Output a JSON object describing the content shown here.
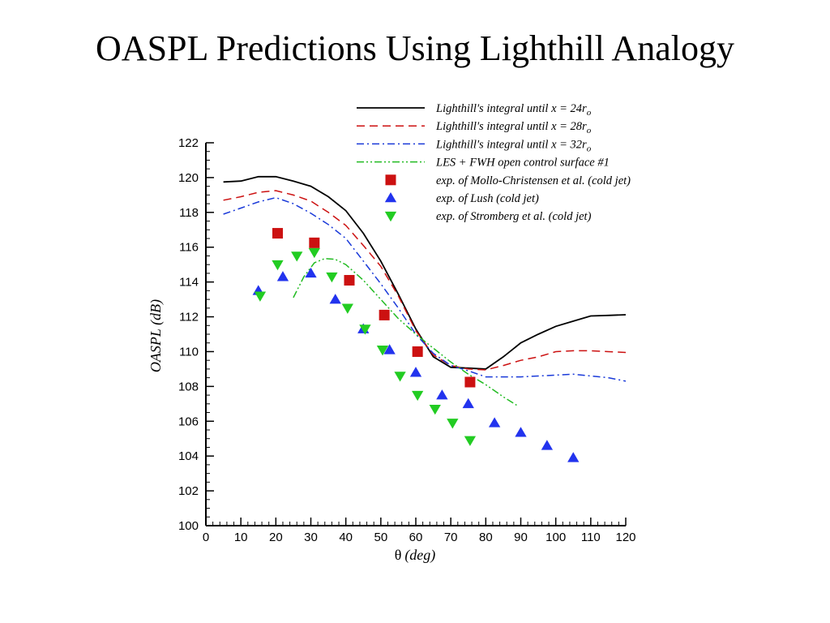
{
  "page": {
    "title": "OASPL Predictions Using Lighthill Analogy"
  },
  "chart_data": {
    "type": "line",
    "title": "",
    "xlabel": "(deg)",
    "xlabel_symbol": "θ",
    "ylabel": "OASPL (dB)",
    "xlim": [
      0,
      120
    ],
    "ylim": [
      100,
      122
    ],
    "xticks": [
      0,
      10,
      20,
      30,
      40,
      50,
      60,
      70,
      80,
      90,
      100,
      110,
      120
    ],
    "yticks": [
      100,
      102,
      104,
      106,
      108,
      110,
      112,
      114,
      116,
      118,
      120,
      122
    ],
    "grid": false,
    "legend_position": "top-right",
    "series": [
      {
        "name": "Lighthill's integral until x = 24r",
        "name_subscript": "o",
        "kind": "line",
        "style": "solid",
        "color": "#000000",
        "points": [
          [
            5,
            119.75
          ],
          [
            10,
            119.8
          ],
          [
            15,
            120.05
          ],
          [
            20,
            120.05
          ],
          [
            25,
            119.8
          ],
          [
            30,
            119.5
          ],
          [
            35,
            118.9
          ],
          [
            40,
            118.1
          ],
          [
            45,
            116.8
          ],
          [
            50,
            115.2
          ],
          [
            55,
            113.3
          ],
          [
            60,
            111.3
          ],
          [
            65,
            109.7
          ],
          [
            70,
            109.1
          ],
          [
            75,
            109.05
          ],
          [
            80,
            109.0
          ],
          [
            85,
            109.7
          ],
          [
            90,
            110.5
          ],
          [
            95,
            111.0
          ],
          [
            100,
            111.45
          ],
          [
            105,
            111.75
          ],
          [
            110,
            112.05
          ],
          [
            115,
            112.08
          ],
          [
            120,
            112.12
          ]
        ]
      },
      {
        "name": "Lighthill's integral until x = 28r",
        "name_subscript": "o",
        "kind": "line",
        "style": "dashed",
        "color": "#cc1111",
        "points": [
          [
            5,
            118.7
          ],
          [
            10,
            118.9
          ],
          [
            15,
            119.15
          ],
          [
            20,
            119.25
          ],
          [
            25,
            119.0
          ],
          [
            30,
            118.65
          ],
          [
            35,
            118.0
          ],
          [
            40,
            117.25
          ],
          [
            45,
            116.1
          ],
          [
            50,
            114.9
          ],
          [
            55,
            113.2
          ],
          [
            60,
            111.2
          ],
          [
            65,
            109.8
          ],
          [
            70,
            109.2
          ],
          [
            75,
            109.0
          ],
          [
            80,
            108.95
          ],
          [
            85,
            109.2
          ],
          [
            90,
            109.5
          ],
          [
            95,
            109.7
          ],
          [
            100,
            110.0
          ],
          [
            105,
            110.05
          ],
          [
            110,
            110.05
          ],
          [
            115,
            110.0
          ],
          [
            120,
            109.95
          ]
        ]
      },
      {
        "name": "Lighthill's integral until x = 32r",
        "name_subscript": "o",
        "kind": "line",
        "style": "dashdot",
        "color": "#1a3ad9",
        "points": [
          [
            5,
            117.9
          ],
          [
            10,
            118.25
          ],
          [
            15,
            118.6
          ],
          [
            20,
            118.85
          ],
          [
            25,
            118.5
          ],
          [
            30,
            117.95
          ],
          [
            35,
            117.3
          ],
          [
            40,
            116.5
          ],
          [
            45,
            115.2
          ],
          [
            50,
            113.9
          ],
          [
            55,
            112.5
          ],
          [
            60,
            111.0
          ],
          [
            65,
            109.9
          ],
          [
            70,
            109.2
          ],
          [
            75,
            108.9
          ],
          [
            80,
            108.55
          ],
          [
            85,
            108.55
          ],
          [
            90,
            108.55
          ],
          [
            95,
            108.6
          ],
          [
            100,
            108.65
          ],
          [
            105,
            108.7
          ],
          [
            110,
            108.6
          ],
          [
            115,
            108.5
          ],
          [
            120,
            108.3
          ]
        ]
      },
      {
        "name": "LES + FWH open control surface #1",
        "kind": "line",
        "style": "dashdotdot",
        "color": "#22bb22",
        "points": [
          [
            25,
            113.1
          ],
          [
            28,
            114.3
          ],
          [
            31,
            115.1
          ],
          [
            34,
            115.35
          ],
          [
            37,
            115.3
          ],
          [
            40,
            115.0
          ],
          [
            45,
            114.1
          ],
          [
            50,
            113.0
          ],
          [
            55,
            111.9
          ],
          [
            60,
            111.0
          ],
          [
            65,
            110.2
          ],
          [
            70,
            109.4
          ],
          [
            75,
            108.7
          ],
          [
            80,
            108.1
          ],
          [
            85,
            107.4
          ],
          [
            89,
            106.9
          ]
        ]
      },
      {
        "name": "exp. of Mollo-Christensen et al. (cold jet)",
        "kind": "marker",
        "marker": "square",
        "color": "#cc1111",
        "points": [
          [
            20.5,
            116.8
          ],
          [
            31,
            116.25
          ],
          [
            41,
            114.1
          ],
          [
            51,
            112.1
          ],
          [
            60.5,
            110.0
          ],
          [
            75.5,
            108.25
          ]
        ]
      },
      {
        "name": "exp. of Lush (cold jet)",
        "kind": "marker",
        "marker": "triangle-up",
        "color": "#2233ee",
        "points": [
          [
            15,
            113.5
          ],
          [
            22,
            114.3
          ],
          [
            30,
            114.5
          ],
          [
            37,
            113.0
          ],
          [
            45,
            111.3
          ],
          [
            52.5,
            110.1
          ],
          [
            60,
            108.8
          ],
          [
            67.5,
            107.5
          ],
          [
            75,
            107.0
          ],
          [
            82.5,
            105.9
          ],
          [
            90,
            105.35
          ],
          [
            97.5,
            104.6
          ],
          [
            105,
            103.9
          ]
        ]
      },
      {
        "name": "exp. of Stromberg et al. (cold jet)",
        "kind": "marker",
        "marker": "triangle-down",
        "color": "#22cc22",
        "points": [
          [
            15.5,
            113.2
          ],
          [
            20.5,
            115.0
          ],
          [
            26,
            115.5
          ],
          [
            31,
            115.7
          ],
          [
            36,
            114.3
          ],
          [
            40.5,
            112.5
          ],
          [
            45.5,
            111.3
          ],
          [
            50.5,
            110.1
          ],
          [
            55.5,
            108.6
          ],
          [
            60.5,
            107.5
          ],
          [
            65.5,
            106.7
          ],
          [
            70.5,
            105.9
          ],
          [
            75.5,
            104.9
          ]
        ]
      }
    ]
  }
}
